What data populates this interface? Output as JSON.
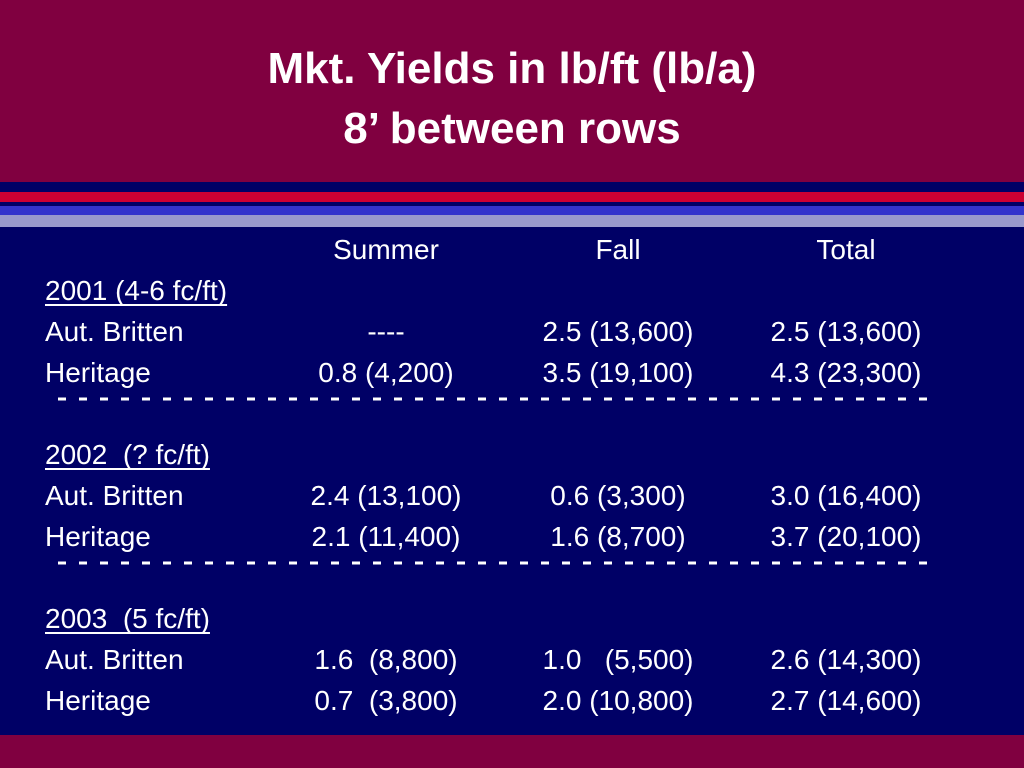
{
  "title": [
    "Mkt. Yields in lb/ft (lb/a)",
    "8’ between rows"
  ],
  "table": {
    "columns": [
      "Summer",
      "Fall",
      "Total"
    ],
    "groups": [
      {
        "label": "2001 (4-6 fc/ft)",
        "rows": [
          [
            "Aut. Britten",
            "----",
            "2.5 (13,600)",
            "2.5 (13,600)"
          ],
          [
            "Heritage",
            "0.8 (4,200)",
            "3.5 (19,100)",
            "4.3 (23,300)"
          ]
        ]
      },
      {
        "label": "2002  (? fc/ft)",
        "rows": [
          [
            "Aut. Britten",
            "2.4 (13,100)",
            "0.6 (3,300)",
            "3.0 (16,400)"
          ],
          [
            "Heritage",
            "2.1 (11,400)",
            "1.6 (8,700)",
            "3.7 (20,100)"
          ]
        ]
      },
      {
        "label": "2003  (5 fc/ft)",
        "rows": [
          [
            "Aut. Britten",
            "1.6  (8,800)",
            "1.0   (5,500)",
            "2.6 (14,300)"
          ],
          [
            "Heritage",
            "0.7  (3,800)",
            "2.0 (10,800)",
            "2.7 (14,600)"
          ]
        ]
      }
    ]
  }
}
